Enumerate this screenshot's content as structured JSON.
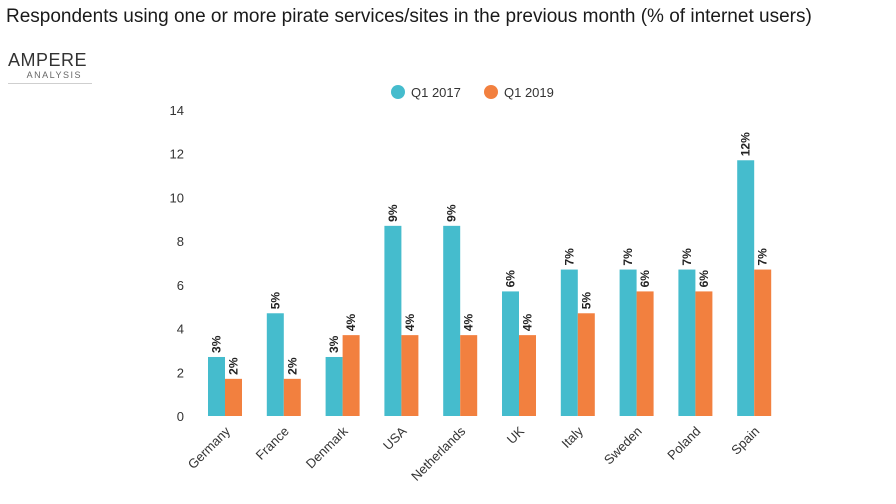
{
  "chart_data": {
    "type": "bar",
    "title": "Respondents using one or more pirate services/sites in the previous month (% of internet users)",
    "categories": [
      "Germany",
      "France",
      "Denmark",
      "USA",
      "Netherlands",
      "UK",
      "Italy",
      "Sweden",
      "Poland",
      "Spain"
    ],
    "series": [
      {
        "name": "Q1 2017",
        "color": "#45bccd",
        "values": [
          2.7,
          4.7,
          2.7,
          8.7,
          8.7,
          5.7,
          6.7,
          6.7,
          6.7,
          11.7
        ],
        "labels": [
          "3%",
          "5%",
          "3%",
          "9%",
          "9%",
          "6%",
          "7%",
          "7%",
          "7%",
          "12%"
        ]
      },
      {
        "name": "Q1 2019",
        "color": "#f2803f",
        "values": [
          1.7,
          1.7,
          3.7,
          3.7,
          3.7,
          3.7,
          4.7,
          5.7,
          5.7,
          6.7
        ],
        "labels": [
          "2%",
          "2%",
          "4%",
          "4%",
          "4%",
          "4%",
          "5%",
          "6%",
          "6%",
          "7%"
        ]
      }
    ],
    "yticks": [
      0,
      2,
      4,
      6,
      8,
      10,
      12,
      14
    ],
    "ylim": [
      0,
      14
    ],
    "grid": false,
    "legend": "top-center"
  },
  "brand": {
    "name": "AMPERE",
    "sub": "ANALYSIS"
  }
}
